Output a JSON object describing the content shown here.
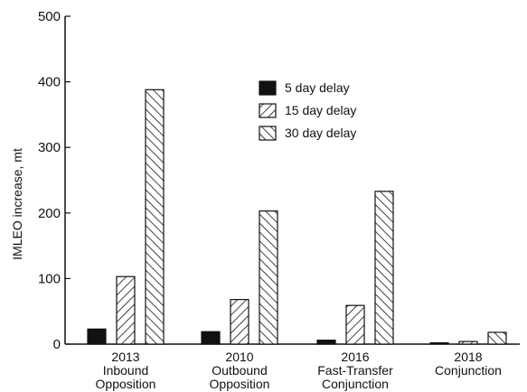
{
  "chart_data": {
    "type": "bar",
    "title": "",
    "xlabel": "",
    "ylabel": "IMLEO increase, mt",
    "ylim": [
      0,
      500
    ],
    "yticks": [
      0,
      100,
      200,
      300,
      400,
      500
    ],
    "grid": false,
    "legend_position": "upper-center",
    "categories": [
      [
        "2013",
        "Inbound",
        "Opposition"
      ],
      [
        "2010",
        "Outbound",
        "Opposition"
      ],
      [
        "2016",
        "Fast-Transfer",
        "Conjunction"
      ],
      [
        "2018",
        "Conjunction"
      ]
    ],
    "series": [
      {
        "name": "5 day delay",
        "pattern": "solid",
        "values": [
          23,
          19,
          6,
          2
        ]
      },
      {
        "name": "15 day delay",
        "pattern": "hatch-right",
        "values": [
          103,
          68,
          59,
          4
        ]
      },
      {
        "name": "30 day delay",
        "pattern": "hatch-left",
        "values": [
          388,
          203,
          233,
          18
        ]
      }
    ],
    "colors": {
      "ink": "#111111",
      "background": "#ffffff"
    }
  }
}
